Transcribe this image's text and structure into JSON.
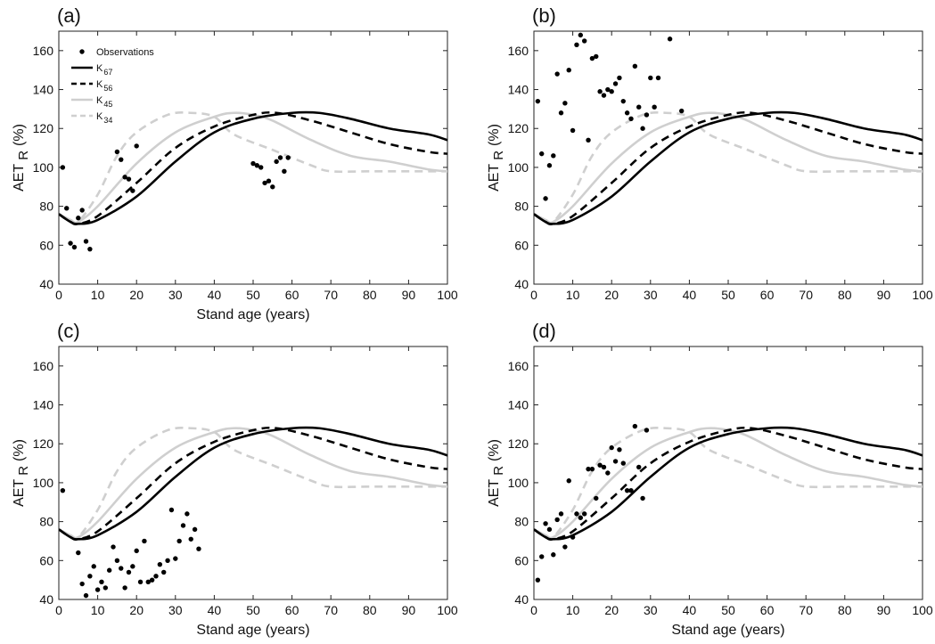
{
  "chart_data": [
    {
      "type": "scatter",
      "panel_label": "(a)",
      "xlabel": "Stand age (years)",
      "ylabel_main": "AET",
      "ylabel_sub": "R",
      "ylabel_unit": "(%)",
      "xlim": [
        0,
        100
      ],
      "ylim": [
        40,
        170
      ],
      "xticks": [
        0,
        10,
        20,
        30,
        40,
        50,
        60,
        70,
        80,
        90,
        100
      ],
      "yticks": [
        40,
        60,
        80,
        100,
        120,
        140,
        160
      ],
      "legend": {
        "placement": "top-left",
        "entries": [
          {
            "label": "Observations",
            "sub": "",
            "style": "dots"
          },
          {
            "label": "K",
            "sub": "67",
            "style": "solid-black"
          },
          {
            "label": "K",
            "sub": "56",
            "style": "dashed-black"
          },
          {
            "label": "K",
            "sub": "45",
            "style": "solid-gray"
          },
          {
            "label": "K",
            "sub": "34",
            "style": "dashed-gray"
          }
        ]
      },
      "observations": [
        [
          1,
          100
        ],
        [
          2,
          79
        ],
        [
          3,
          61
        ],
        [
          4,
          59
        ],
        [
          5,
          74
        ],
        [
          6,
          78
        ],
        [
          7,
          62
        ],
        [
          8,
          58
        ],
        [
          15,
          108
        ],
        [
          16,
          104
        ],
        [
          17,
          95
        ],
        [
          18,
          94
        ],
        [
          19,
          88
        ],
        [
          20,
          111
        ],
        [
          50,
          102
        ],
        [
          51,
          101
        ],
        [
          52,
          100
        ],
        [
          53,
          92
        ],
        [
          54,
          93
        ],
        [
          55,
          90
        ],
        [
          56,
          103
        ],
        [
          57,
          105
        ],
        [
          58,
          98
        ],
        [
          59,
          105
        ]
      ]
    },
    {
      "type": "scatter",
      "panel_label": "(b)",
      "xlabel": "",
      "ylabel_main": "AET",
      "ylabel_sub": "R",
      "ylabel_unit": "(%)",
      "xlim": [
        0,
        100
      ],
      "ylim": [
        40,
        170
      ],
      "xticks": [
        0,
        10,
        20,
        30,
        40,
        50,
        60,
        70,
        80,
        90,
        100
      ],
      "yticks": [
        40,
        60,
        80,
        100,
        120,
        140,
        160
      ],
      "legend": null,
      "observations": [
        [
          1,
          134
        ],
        [
          2,
          107
        ],
        [
          3,
          84
        ],
        [
          4,
          101
        ],
        [
          5,
          106
        ],
        [
          6,
          148
        ],
        [
          7,
          128
        ],
        [
          8,
          133
        ],
        [
          9,
          150
        ],
        [
          10,
          119
        ],
        [
          11,
          163
        ],
        [
          12,
          168
        ],
        [
          13,
          165
        ],
        [
          14,
          114
        ],
        [
          15,
          156
        ],
        [
          16,
          157
        ],
        [
          17,
          139
        ],
        [
          18,
          137
        ],
        [
          19,
          140
        ],
        [
          20,
          139
        ],
        [
          21,
          143
        ],
        [
          22,
          146
        ],
        [
          23,
          134
        ],
        [
          24,
          128
        ],
        [
          25,
          125
        ],
        [
          26,
          152
        ],
        [
          27,
          131
        ],
        [
          28,
          120
        ],
        [
          29,
          127
        ],
        [
          30,
          146
        ],
        [
          31,
          131
        ],
        [
          32,
          146
        ],
        [
          35,
          166
        ],
        [
          38,
          129
        ]
      ]
    },
    {
      "type": "scatter",
      "panel_label": "(c)",
      "xlabel": "Stand age (years)",
      "ylabel_main": "AET",
      "ylabel_sub": "R",
      "ylabel_unit": "(%)",
      "xlim": [
        0,
        100
      ],
      "ylim": [
        40,
        170
      ],
      "xticks": [
        0,
        10,
        20,
        30,
        40,
        50,
        60,
        70,
        80,
        90,
        100
      ],
      "yticks": [
        40,
        60,
        80,
        100,
        120,
        140,
        160
      ],
      "legend": null,
      "observations": [
        [
          1,
          96
        ],
        [
          5,
          64
        ],
        [
          6,
          48
        ],
        [
          7,
          42
        ],
        [
          8,
          52
        ],
        [
          9,
          57
        ],
        [
          10,
          45
        ],
        [
          11,
          49
        ],
        [
          12,
          46
        ],
        [
          13,
          55
        ],
        [
          14,
          67
        ],
        [
          15,
          60
        ],
        [
          16,
          56
        ],
        [
          17,
          46
        ],
        [
          18,
          54
        ],
        [
          19,
          57
        ],
        [
          20,
          65
        ],
        [
          21,
          49
        ],
        [
          22,
          70
        ],
        [
          23,
          49
        ],
        [
          24,
          50
        ],
        [
          25,
          52
        ],
        [
          26,
          58
        ],
        [
          27,
          54
        ],
        [
          28,
          60
        ],
        [
          29,
          86
        ],
        [
          30,
          61
        ],
        [
          31,
          70
        ],
        [
          32,
          78
        ],
        [
          33,
          84
        ],
        [
          34,
          71
        ],
        [
          35,
          76
        ],
        [
          36,
          66
        ]
      ]
    },
    {
      "type": "scatter",
      "panel_label": "(d)",
      "xlabel": "Stand age (years)",
      "ylabel_main": "AET",
      "ylabel_sub": "R",
      "ylabel_unit": "(%)",
      "xlim": [
        0,
        100
      ],
      "ylim": [
        40,
        170
      ],
      "xticks": [
        0,
        10,
        20,
        30,
        40,
        50,
        60,
        70,
        80,
        90,
        100
      ],
      "yticks": [
        40,
        60,
        80,
        100,
        120,
        140,
        160
      ],
      "legend": null,
      "observations": [
        [
          1,
          50
        ],
        [
          2,
          62
        ],
        [
          3,
          79
        ],
        [
          4,
          76
        ],
        [
          5,
          63
        ],
        [
          6,
          81
        ],
        [
          7,
          84
        ],
        [
          8,
          67
        ],
        [
          9,
          101
        ],
        [
          10,
          72
        ],
        [
          11,
          84
        ],
        [
          12,
          82
        ],
        [
          13,
          84
        ],
        [
          14,
          107
        ],
        [
          15,
          107
        ],
        [
          16,
          92
        ],
        [
          17,
          109
        ],
        [
          18,
          108
        ],
        [
          19,
          105
        ],
        [
          20,
          118
        ],
        [
          21,
          111
        ],
        [
          22,
          117
        ],
        [
          23,
          110
        ],
        [
          24,
          96
        ],
        [
          25,
          96
        ],
        [
          26,
          129
        ],
        [
          27,
          108
        ],
        [
          28,
          92
        ],
        [
          29,
          127
        ]
      ]
    }
  ],
  "model_curves": {
    "K67": {
      "style": "solid-black",
      "points": [
        [
          0,
          76
        ],
        [
          3,
          72
        ],
        [
          5,
          71
        ],
        [
          10,
          73
        ],
        [
          20,
          85
        ],
        [
          30,
          103
        ],
        [
          40,
          118
        ],
        [
          50,
          125
        ],
        [
          60,
          128
        ],
        [
          67,
          128
        ],
        [
          75,
          125
        ],
        [
          85,
          120
        ],
        [
          95,
          117
        ],
        [
          100,
          114
        ]
      ]
    },
    "K56": {
      "style": "dashed-black",
      "points": [
        [
          0,
          76
        ],
        [
          3,
          72
        ],
        [
          5,
          71
        ],
        [
          10,
          75
        ],
        [
          20,
          92
        ],
        [
          30,
          110
        ],
        [
          40,
          121
        ],
        [
          50,
          127
        ],
        [
          56,
          128
        ],
        [
          65,
          124
        ],
        [
          75,
          118
        ],
        [
          85,
          112
        ],
        [
          95,
          108
        ],
        [
          100,
          107
        ]
      ]
    },
    "K45": {
      "style": "solid-gray",
      "points": [
        [
          0,
          76
        ],
        [
          3,
          73
        ],
        [
          5,
          72
        ],
        [
          10,
          80
        ],
        [
          20,
          102
        ],
        [
          30,
          118
        ],
        [
          40,
          126
        ],
        [
          45,
          128
        ],
        [
          50,
          127
        ],
        [
          55,
          124
        ],
        [
          65,
          114
        ],
        [
          75,
          106
        ],
        [
          85,
          103
        ],
        [
          95,
          99
        ],
        [
          100,
          98
        ]
      ]
    },
    "K34": {
      "style": "dashed-gray",
      "points": [
        [
          0,
          76
        ],
        [
          3,
          73
        ],
        [
          5,
          72
        ],
        [
          10,
          86
        ],
        [
          15,
          106
        ],
        [
          20,
          118
        ],
        [
          28,
          127
        ],
        [
          34,
          128
        ],
        [
          40,
          126
        ],
        [
          45,
          117
        ],
        [
          55,
          109
        ],
        [
          65,
          101
        ],
        [
          70,
          98
        ],
        [
          80,
          98
        ],
        [
          90,
          98
        ],
        [
          100,
          98
        ]
      ]
    }
  },
  "colors": {
    "black": "#000000",
    "gray": "#cfcfcf",
    "frame": "#222222"
  }
}
